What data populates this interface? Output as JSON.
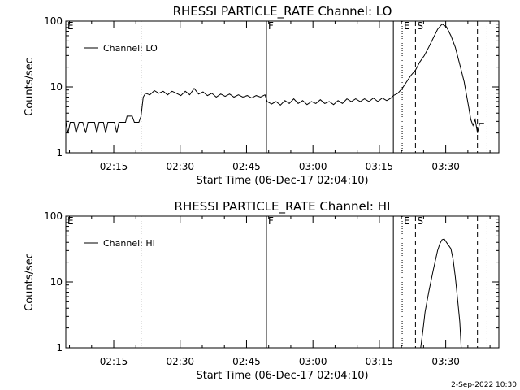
{
  "footer": {
    "timestamp": "2-Sep-2022 10:30"
  },
  "colors": {
    "line": "#000000",
    "background": "#ffffff"
  },
  "chart_data": [
    {
      "type": "line",
      "title": "RHESSI PARTICLE_RATE Channel: LO",
      "xlabel": "Start Time (06-Dec-17 02:04:10)",
      "ylabel": "Counts/sec",
      "y_scale": "log",
      "ylim": [
        1,
        100
      ],
      "xlim": [
        "02:04:10",
        "03:42:00"
      ],
      "x_ticks": [
        "02:15",
        "02:30",
        "02:45",
        "03:00",
        "03:15",
        "03:30"
      ],
      "y_ticks": [
        "1",
        "10",
        "100"
      ],
      "legend": {
        "entries": [
          "Channel: LO"
        ],
        "placement": "top-left"
      },
      "markers": [
        {
          "label": "E",
          "time": "02:04:10",
          "style": "none"
        },
        {
          "label": "",
          "time": "02:21:10",
          "style": "dotted"
        },
        {
          "label": "F",
          "time": "02:49:30",
          "style": "solid"
        },
        {
          "label": "",
          "time": "03:18:10",
          "style": "solid"
        },
        {
          "label": "E",
          "time": "03:20:10",
          "style": "dotted"
        },
        {
          "label": "S",
          "time": "03:23:10",
          "style": "dashed"
        },
        {
          "label": "",
          "time": "03:37:10",
          "style": "dashed"
        },
        {
          "label": "",
          "time": "03:39:20",
          "style": "dotted"
        }
      ],
      "series": [
        {
          "name": "Channel: LO",
          "points": [
            [
              "02:04:10",
              3.0
            ],
            [
              "02:04:40",
              2.0
            ],
            [
              "02:05:10",
              2.9
            ],
            [
              "02:06:00",
              2.9
            ],
            [
              "02:06:30",
              2.0
            ],
            [
              "02:07:10",
              2.9
            ],
            [
              "02:08:00",
              2.9
            ],
            [
              "02:08:40",
              2.0
            ],
            [
              "02:09:10",
              2.9
            ],
            [
              "02:10:40",
              2.9
            ],
            [
              "02:11:10",
              2.0
            ],
            [
              "02:11:40",
              2.9
            ],
            [
              "02:12:40",
              2.9
            ],
            [
              "02:13:10",
              2.0
            ],
            [
              "02:13:40",
              2.9
            ],
            [
              "02:15:10",
              2.9
            ],
            [
              "02:15:40",
              2.0
            ],
            [
              "02:16:10",
              2.9
            ],
            [
              "02:17:40",
              2.9
            ],
            [
              "02:18:00",
              3.6
            ],
            [
              "02:19:10",
              3.6
            ],
            [
              "02:19:40",
              2.9
            ],
            [
              "02:20:40",
              2.9
            ],
            [
              "02:21:10",
              3.6
            ],
            [
              "02:21:40",
              7.0
            ],
            [
              "02:22:10",
              8.0
            ],
            [
              "02:23:10",
              7.6
            ],
            [
              "02:24:10",
              8.8
            ],
            [
              "02:25:10",
              8.0
            ],
            [
              "02:26:10",
              8.6
            ],
            [
              "02:27:10",
              7.6
            ],
            [
              "02:28:10",
              8.6
            ],
            [
              "02:29:10",
              8.0
            ],
            [
              "02:30:10",
              7.4
            ],
            [
              "02:31:10",
              8.6
            ],
            [
              "02:32:10",
              7.6
            ],
            [
              "02:33:10",
              9.5
            ],
            [
              "02:34:10",
              7.8
            ],
            [
              "02:35:10",
              8.4
            ],
            [
              "02:36:10",
              7.4
            ],
            [
              "02:37:10",
              8.0
            ],
            [
              "02:38:10",
              7.0
            ],
            [
              "02:39:10",
              7.8
            ],
            [
              "02:40:10",
              7.2
            ],
            [
              "02:41:10",
              7.8
            ],
            [
              "02:42:10",
              7.0
            ],
            [
              "02:43:10",
              7.6
            ],
            [
              "02:44:10",
              7.0
            ],
            [
              "02:45:10",
              7.4
            ],
            [
              "02:46:10",
              6.8
            ],
            [
              "02:47:10",
              7.4
            ],
            [
              "02:48:10",
              7.0
            ],
            [
              "02:49:10",
              7.6
            ],
            [
              "02:49:40",
              6.0
            ],
            [
              "02:50:40",
              5.5
            ],
            [
              "02:51:40",
              6.0
            ],
            [
              "02:52:40",
              5.3
            ],
            [
              "02:53:40",
              6.2
            ],
            [
              "02:54:40",
              5.6
            ],
            [
              "02:55:40",
              6.6
            ],
            [
              "02:56:40",
              5.6
            ],
            [
              "02:57:40",
              6.2
            ],
            [
              "02:58:40",
              5.4
            ],
            [
              "02:59:40",
              6.0
            ],
            [
              "03:00:40",
              5.6
            ],
            [
              "03:01:40",
              6.4
            ],
            [
              "03:02:40",
              5.6
            ],
            [
              "03:03:40",
              6.0
            ],
            [
              "03:04:40",
              5.4
            ],
            [
              "03:05:40",
              6.2
            ],
            [
              "03:06:40",
              5.6
            ],
            [
              "03:07:40",
              6.6
            ],
            [
              "03:08:40",
              6.0
            ],
            [
              "03:09:40",
              6.6
            ],
            [
              "03:10:40",
              6.0
            ],
            [
              "03:11:40",
              6.6
            ],
            [
              "03:12:40",
              6.0
            ],
            [
              "03:13:40",
              6.8
            ],
            [
              "03:14:40",
              6.0
            ],
            [
              "03:15:40",
              6.8
            ],
            [
              "03:16:40",
              6.2
            ],
            [
              "03:17:40",
              6.8
            ],
            [
              "03:18:10",
              7.4
            ],
            [
              "03:19:10",
              8.0
            ],
            [
              "03:20:10",
              9.5
            ],
            [
              "03:21:10",
              12.0
            ],
            [
              "03:22:10",
              15.0
            ],
            [
              "03:23:10",
              18.0
            ],
            [
              "03:24:10",
              24.0
            ],
            [
              "03:25:10",
              30.0
            ],
            [
              "03:26:10",
              40.0
            ],
            [
              "03:27:10",
              55.0
            ],
            [
              "03:28:10",
              75.0
            ],
            [
              "03:29:10",
              90.0
            ],
            [
              "03:30:10",
              82.0
            ],
            [
              "03:31:10",
              60.0
            ],
            [
              "03:32:10",
              40.0
            ],
            [
              "03:33:10",
              22.0
            ],
            [
              "03:34:10",
              12.0
            ],
            [
              "03:35:10",
              5.0
            ],
            [
              "03:35:40",
              3.2
            ],
            [
              "03:36:10",
              2.6
            ],
            [
              "03:36:40",
              3.2
            ],
            [
              "03:37:10",
              2.0
            ],
            [
              "03:37:40",
              2.8
            ],
            [
              "03:38:40",
              2.8
            ]
          ]
        }
      ]
    },
    {
      "type": "line",
      "title": "RHESSI PARTICLE_RATE Channel: HI",
      "xlabel": "Start Time (06-Dec-17 02:04:10)",
      "ylabel": "Counts/sec",
      "y_scale": "log",
      "ylim": [
        1,
        100
      ],
      "xlim": [
        "02:04:10",
        "03:42:00"
      ],
      "x_ticks": [
        "02:15",
        "02:30",
        "02:45",
        "03:00",
        "03:15",
        "03:30"
      ],
      "y_ticks": [
        "1",
        "10",
        "100"
      ],
      "legend": {
        "entries": [
          "Channel: HI"
        ],
        "placement": "top-left"
      },
      "markers": [
        {
          "label": "E",
          "time": "02:04:10",
          "style": "none"
        },
        {
          "label": "",
          "time": "02:21:10",
          "style": "dotted"
        },
        {
          "label": "F",
          "time": "02:49:30",
          "style": "solid"
        },
        {
          "label": "",
          "time": "03:18:10",
          "style": "solid"
        },
        {
          "label": "E",
          "time": "03:20:10",
          "style": "dotted"
        },
        {
          "label": "S",
          "time": "03:23:10",
          "style": "dashed"
        },
        {
          "label": "",
          "time": "03:37:10",
          "style": "dashed"
        },
        {
          "label": "",
          "time": "03:39:20",
          "style": "dotted"
        }
      ],
      "series": [
        {
          "name": "Channel: HI",
          "points": [
            [
              "03:24:20",
              1.0
            ],
            [
              "03:24:50",
              1.8
            ],
            [
              "03:25:20",
              3.5
            ],
            [
              "03:26:10",
              7.0
            ],
            [
              "03:27:10",
              15.0
            ],
            [
              "03:28:10",
              30.0
            ],
            [
              "03:28:40",
              38.0
            ],
            [
              "03:29:10",
              44.0
            ],
            [
              "03:29:40",
              45.0
            ],
            [
              "03:30:10",
              40.0
            ],
            [
              "03:31:10",
              32.0
            ],
            [
              "03:31:40",
              22.0
            ],
            [
              "03:32:10",
              12.0
            ],
            [
              "03:32:40",
              5.5
            ],
            [
              "03:33:10",
              2.5
            ],
            [
              "03:33:30",
              1.0
            ]
          ]
        }
      ]
    }
  ]
}
